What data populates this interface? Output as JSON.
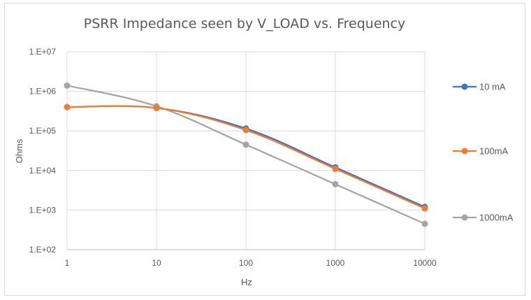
{
  "chart_data": {
    "type": "line",
    "title": "PSRR Impedance seen by V_LOAD vs. Frequency",
    "xlabel": "Hz",
    "ylabel": "Ohms",
    "x_scale": "log",
    "y_scale": "log",
    "x": [
      1,
      10,
      100,
      1000,
      10000
    ],
    "x_tick_labels": [
      "1",
      "10",
      "100",
      "1000",
      "10000"
    ],
    "y_tick_labels": [
      "1.E+02",
      "1.E+03",
      "1.E+04",
      "1.E+05",
      "1.E+06",
      "1.E+07"
    ],
    "ylim": [
      100,
      10000000
    ],
    "xlim": [
      1,
      10000
    ],
    "grid": true,
    "legend_position": "right",
    "series": [
      {
        "name": "10 mA",
        "color": "#4472C4",
        "values": [
          400000,
          380000,
          115000,
          12000,
          1200
        ]
      },
      {
        "name": "100mA",
        "color": "#ED7D31",
        "values": [
          400000,
          380000,
          105000,
          11000,
          1100
        ]
      },
      {
        "name": "1000mA",
        "color": "#A5A5A5",
        "values": [
          1400000,
          420000,
          45000,
          4500,
          450
        ]
      }
    ]
  }
}
